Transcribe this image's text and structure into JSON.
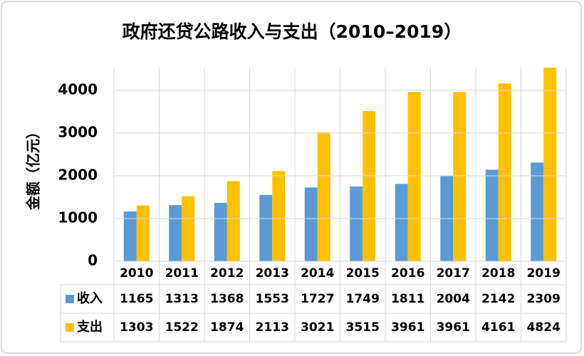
{
  "chart_data": {
    "type": "bar",
    "title": "政府还贷公路收入与支出（2010–2019）",
    "y_label": "金额（亿元）",
    "categories": [
      "2010",
      "2011",
      "2012",
      "2013",
      "2014",
      "2015",
      "2016",
      "2017",
      "2018",
      "2019"
    ],
    "series": [
      {
        "name": "收入",
        "color": "#5b9bd5",
        "values": [
          1165,
          1313,
          1368,
          1553,
          1727,
          1749,
          1811,
          2004,
          2142,
          2309
        ]
      },
      {
        "name": "支出",
        "color": "#ffc000",
        "values": [
          1303,
          1522,
          1874,
          2113,
          3021,
          3515,
          3961,
          3961,
          4161,
          4824
        ]
      }
    ],
    "ylim": [
      0,
      4530
    ],
    "yticks": [
      0,
      1000,
      2000,
      3000,
      4000
    ],
    "grid": true
  }
}
